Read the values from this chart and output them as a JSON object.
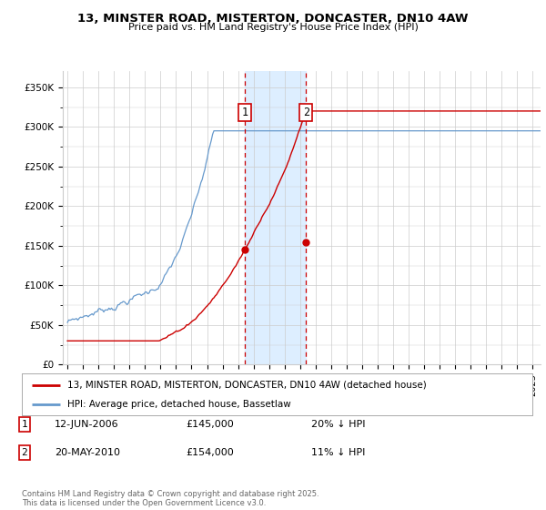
{
  "title": "13, MINSTER ROAD, MISTERTON, DONCASTER, DN10 4AW",
  "subtitle": "Price paid vs. HM Land Registry's House Price Index (HPI)",
  "ylim": [
    0,
    370000
  ],
  "yticks": [
    0,
    50000,
    100000,
    150000,
    200000,
    250000,
    300000,
    350000
  ],
  "ytick_labels": [
    "£0",
    "£50K",
    "£100K",
    "£150K",
    "£200K",
    "£250K",
    "£300K",
    "£350K"
  ],
  "xlim_start": 1994.7,
  "xlim_end": 2025.5,
  "transaction1_x": 2006.44,
  "transaction1_y": 145000,
  "transaction1_label": "12-JUN-2006",
  "transaction1_price": "£145,000",
  "transaction1_hpi": "20% ↓ HPI",
  "transaction2_x": 2010.38,
  "transaction2_y": 154000,
  "transaction2_label": "20-MAY-2010",
  "transaction2_price": "£154,000",
  "transaction2_hpi": "11% ↓ HPI",
  "line_color_red": "#cc0000",
  "line_color_blue": "#6699cc",
  "shade_color": "#ddeeff",
  "vline_color": "#cc0000",
  "legend_label_red": "13, MINSTER ROAD, MISTERTON, DONCASTER, DN10 4AW (detached house)",
  "legend_label_blue": "HPI: Average price, detached house, Bassetlaw",
  "footnote": "Contains HM Land Registry data © Crown copyright and database right 2025.\nThis data is licensed under the Open Government Licence v3.0.",
  "grid_color": "#cccccc",
  "background_color": "#ffffff"
}
